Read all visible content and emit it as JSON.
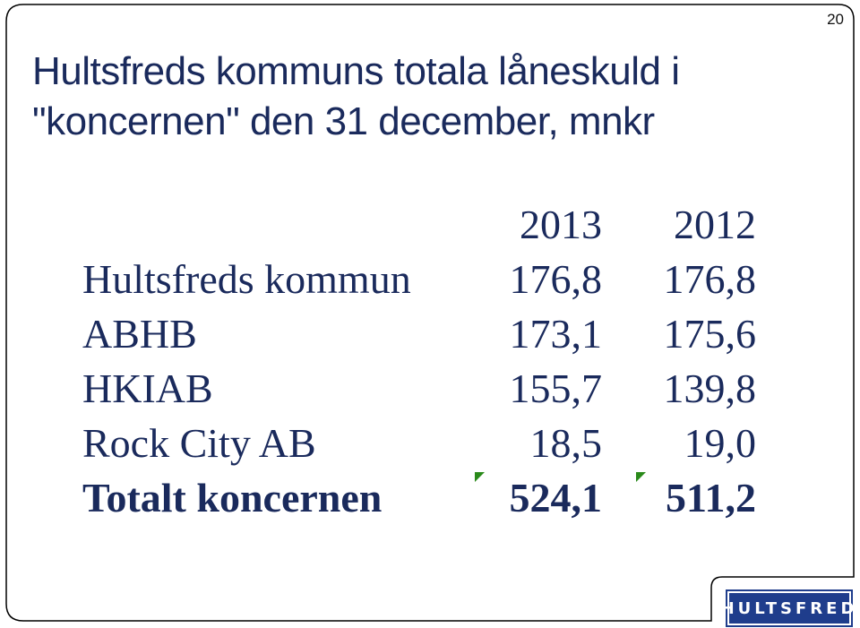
{
  "slide": {
    "page_number": "20",
    "title": "Hultsfreds kommuns totala låneskuld i \"koncernen\" den 31 december, mnkr"
  },
  "table": {
    "header": [
      "",
      "2013",
      "2012"
    ],
    "rows": [
      {
        "label": "Hultsfreds kommun",
        "v2013": "176,8",
        "v2012": "176,8"
      },
      {
        "label": "ABHB",
        "v2013": "173,1",
        "v2012": "175,6"
      },
      {
        "label": "HKIAB",
        "v2013": "155,7",
        "v2012": "139,8"
      },
      {
        "label": "Rock City AB",
        "v2013": "18,5",
        "v2012": "19,0"
      }
    ],
    "total": {
      "label": "Totalt koncernen",
      "v2013": "524,1",
      "v2012": "511,2"
    }
  },
  "logo": {
    "text": "HULTSFRED",
    "color": "#1f3d8c"
  },
  "colors": {
    "text": "#1a2a5c",
    "marker": "#2a8a1a"
  }
}
